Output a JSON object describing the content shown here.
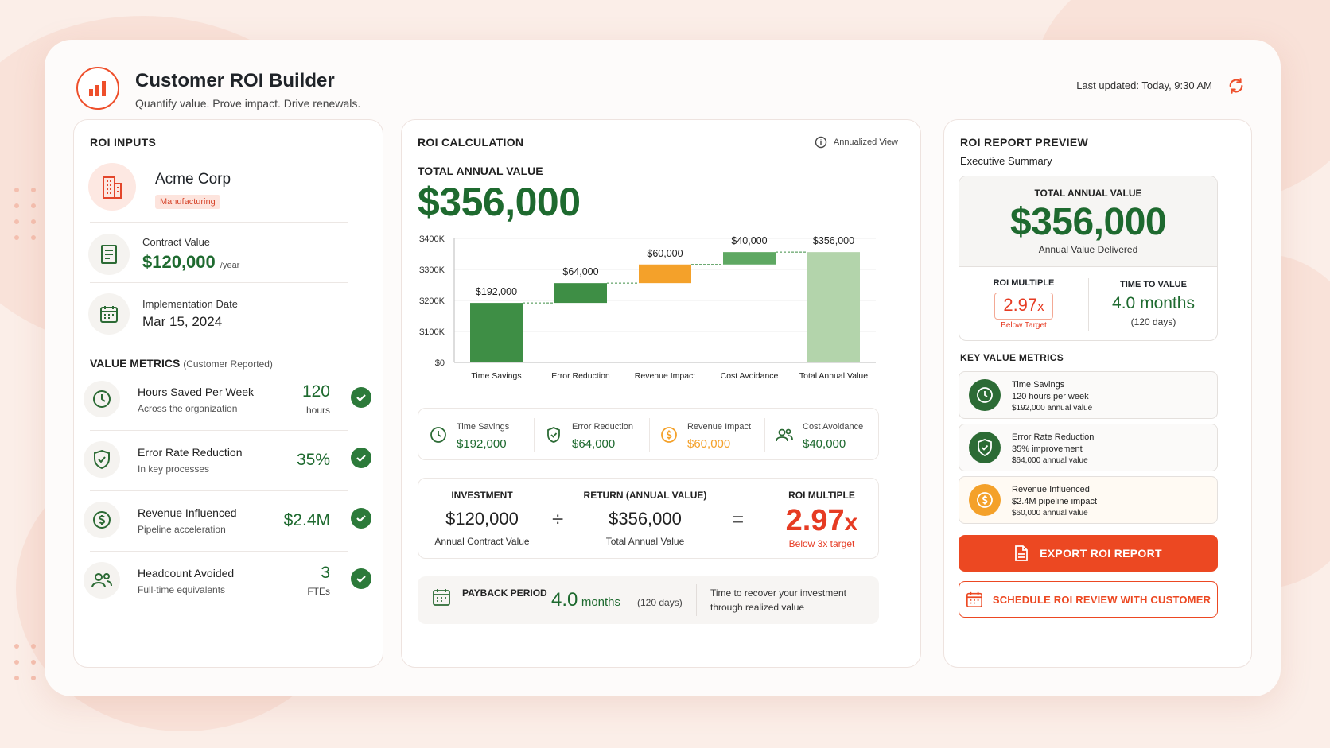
{
  "header": {
    "title": "Customer ROI Builder",
    "subtitle": "Quantify value. Prove impact. Drive renewals.",
    "last_updated": "Last updated: Today, 9:30 AM"
  },
  "inputs": {
    "title": "ROI INPUTS",
    "company": "Acme Corp",
    "industry": "Manufacturing",
    "contract_label": "Contract Value",
    "contract_value": "$120,000",
    "contract_unit": "/year",
    "impl_label": "Implementation Date",
    "impl_date": "Mar 15, 2024",
    "metrics_title": "VALUE METRICS",
    "metrics_note": "(Customer Reported)",
    "metrics": [
      {
        "name": "Hours Saved Per Week",
        "desc": "Across the organization",
        "value": "120",
        "unit": "hours"
      },
      {
        "name": "Error Rate Reduction",
        "desc": "In key processes",
        "value": "35%",
        "unit": ""
      },
      {
        "name": "Revenue Influenced",
        "desc": "Pipeline acceleration",
        "value": "$2.4M",
        "unit": ""
      },
      {
        "name": "Headcount Avoided",
        "desc": "Full-time equivalents",
        "value": "3",
        "unit": "FTEs"
      }
    ]
  },
  "calc": {
    "title": "ROI CALCULATION",
    "view": "Annualized View",
    "total_label": "TOTAL ANNUAL VALUE",
    "total_value": "$356,000",
    "breakdown": [
      {
        "label": "Time Savings",
        "value": "$192,000"
      },
      {
        "label": "Error Reduction",
        "value": "$64,000"
      },
      {
        "label": "Revenue Impact",
        "value": "$60,000"
      },
      {
        "label": "Cost Avoidance",
        "value": "$40,000"
      }
    ],
    "investment_h": "INVESTMENT",
    "investment_v": "$120,000",
    "investment_s": "Annual Contract Value",
    "return_h": "RETURN (ANNUAL VALUE)",
    "return_v": "$356,000",
    "return_s": "Total Annual Value",
    "op_div": "÷",
    "op_eq": "=",
    "roi_h": "ROI MULTIPLE",
    "roi_v": "2.97",
    "roi_x": "x",
    "roi_s": "Below 3x target",
    "payback_label": "PAYBACK PERIOD",
    "payback_value": "4.0",
    "payback_unit": "months",
    "payback_days": "(120 days)",
    "payback_note1": "Time to recover your investment",
    "payback_note2": "through realized value"
  },
  "chart_data": {
    "type": "bar",
    "categories": [
      "Time Savings",
      "Error Reduction",
      "Revenue Impact",
      "Cost Avoidance",
      "Total Annual Value"
    ],
    "values": [
      192000,
      64000,
      60000,
      40000,
      356000
    ],
    "value_labels": [
      "$192,000",
      "$64,000",
      "$60,000",
      "$40,000",
      "$356,000"
    ],
    "ylim": [
      0,
      400000
    ],
    "yticks": [
      0,
      100000,
      200000,
      300000,
      400000
    ],
    "ytick_labels": [
      "$0",
      "$100K",
      "$200K",
      "$300K",
      "$400K"
    ],
    "colors": [
      "#3e8e45",
      "#3e8e45",
      "#f4a12a",
      "#5ea862",
      "#b3d4ab"
    ],
    "grid": true
  },
  "report": {
    "title": "ROI REPORT PREVIEW",
    "subtitle": "Executive Summary",
    "total_label": "TOTAL ANNUAL VALUE",
    "total_value": "$356,000",
    "total_sub": "Annual Value Delivered",
    "roi_h": "ROI MULTIPLE",
    "roi_v": "2.97",
    "roi_x": "x",
    "roi_s": "Below Target",
    "ttv_h": "TIME TO VALUE",
    "ttv_v": "4.0 months",
    "ttv_s": "(120 days)",
    "kv_title": "KEY VALUE METRICS",
    "kv": [
      {
        "l1": "Time Savings",
        "l2": "120 hours per week",
        "l3": "$192,000 annual value"
      },
      {
        "l1": "Error Rate Reduction",
        "l2": "35% improvement",
        "l3": "$64,000 annual value"
      },
      {
        "l1": "Revenue Influenced",
        "l2": "$2.4M pipeline impact",
        "l3": "$60,000 annual value"
      }
    ],
    "export_btn": "EXPORT ROI REPORT",
    "schedule_btn": "SCHEDULE ROI REVIEW WITH CUSTOMER"
  },
  "colors": {
    "accent": "#ec4822",
    "green": "#1e6a2f",
    "warning": "#e63b23",
    "orange": "#f4a12a"
  }
}
